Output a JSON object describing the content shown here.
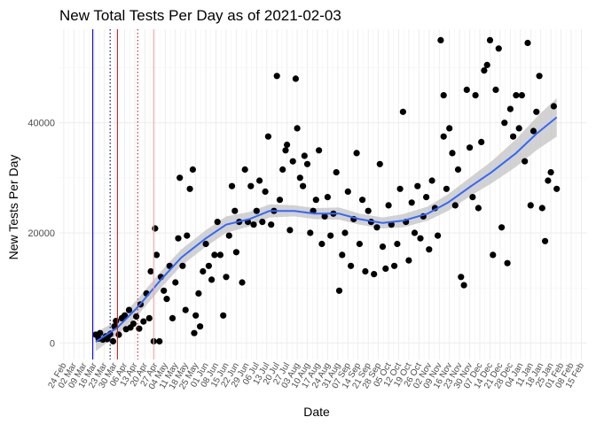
{
  "chart_data": {
    "type": "scatter",
    "title": "New Total Tests Per Day as of 2021-02-03",
    "xlabel": "Date",
    "ylabel": "New Tests Per Day",
    "x_range": [
      "2020-02-21",
      "2021-02-19"
    ],
    "ylim": [
      -3000,
      57000
    ],
    "y_ticks": [
      0,
      20000,
      40000
    ],
    "x_tick_labels": [
      "24 Feb",
      "02 Mar",
      "09 Mar",
      "16 Mar",
      "23 Mar",
      "30 Mar",
      "06 Apr",
      "13 Apr",
      "20 Apr",
      "27 Apr",
      "04 May",
      "11 May",
      "18 May",
      "25 May",
      "01 Jun",
      "08 Jun",
      "15 Jun",
      "22 Jun",
      "29 Jun",
      "06 Jul",
      "13 Jul",
      "20 Jul",
      "27 Jul",
      "03 Aug",
      "10 Aug",
      "17 Aug",
      "24 Aug",
      "31 Aug",
      "07 Sep",
      "14 Sep",
      "21 Sep",
      "28 Sep",
      "05 Oct",
      "12 Oct",
      "19 Oct",
      "26 Oct",
      "02 Nov",
      "09 Nov",
      "16 Nov",
      "23 Nov",
      "30 Nov",
      "07 Dec",
      "14 Dec",
      "21 Dec",
      "28 Dec",
      "04 Jan",
      "11 Jan",
      "18 Jan",
      "25 Jan",
      "01 Feb",
      "08 Feb",
      "15 Feb"
    ],
    "x_tick_dates": [
      "2020-02-24",
      "2020-03-02",
      "2020-03-09",
      "2020-03-16",
      "2020-03-23",
      "2020-03-30",
      "2020-04-06",
      "2020-04-13",
      "2020-04-20",
      "2020-04-27",
      "2020-05-04",
      "2020-05-11",
      "2020-05-18",
      "2020-05-25",
      "2020-06-01",
      "2020-06-08",
      "2020-06-15",
      "2020-06-22",
      "2020-06-29",
      "2020-07-06",
      "2020-07-13",
      "2020-07-20",
      "2020-07-27",
      "2020-08-03",
      "2020-08-10",
      "2020-08-17",
      "2020-08-24",
      "2020-08-31",
      "2020-09-07",
      "2020-09-14",
      "2020-09-21",
      "2020-09-28",
      "2020-10-05",
      "2020-10-12",
      "2020-10-19",
      "2020-10-26",
      "2020-11-02",
      "2020-11-09",
      "2020-11-16",
      "2020-11-23",
      "2020-11-30",
      "2020-12-07",
      "2020-12-14",
      "2020-12-21",
      "2020-12-28",
      "2021-01-04",
      "2021-01-11",
      "2021-01-18",
      "2021-01-25",
      "2021-02-01",
      "2021-02-08",
      "2021-02-15"
    ],
    "grid": true,
    "vlines": [
      {
        "date": "2020-03-15",
        "color": "#0000cd",
        "style": "solid"
      },
      {
        "date": "2020-03-27",
        "color": "#00008b",
        "style": "dotted"
      },
      {
        "date": "2020-04-01",
        "color": "#b22222",
        "style": "solid"
      },
      {
        "date": "2020-04-15",
        "color": "#b22222",
        "style": "dotted"
      },
      {
        "date": "2020-04-26",
        "color": "#f4a6a6",
        "style": "solid"
      }
    ],
    "points": [
      {
        "x": "2020-03-17",
        "y": 1500
      },
      {
        "x": "2020-03-19",
        "y": 800
      },
      {
        "x": "2020-03-20",
        "y": 1800
      },
      {
        "x": "2020-03-22",
        "y": 600
      },
      {
        "x": "2020-03-24",
        "y": 1200
      },
      {
        "x": "2020-03-25",
        "y": 700
      },
      {
        "x": "2020-03-27",
        "y": 1600
      },
      {
        "x": "2020-03-29",
        "y": 300
      },
      {
        "x": "2020-03-30",
        "y": 3000
      },
      {
        "x": "2020-03-31",
        "y": 4000
      },
      {
        "x": "2020-04-02",
        "y": 1500
      },
      {
        "x": "2020-04-04",
        "y": 4500
      },
      {
        "x": "2020-04-06",
        "y": 5000
      },
      {
        "x": "2020-04-07",
        "y": 2500
      },
      {
        "x": "2020-04-09",
        "y": 6000
      },
      {
        "x": "2020-04-10",
        "y": 2800
      },
      {
        "x": "2020-04-12",
        "y": 3500
      },
      {
        "x": "2020-04-14",
        "y": 4800
      },
      {
        "x": "2020-04-16",
        "y": 2600
      },
      {
        "x": "2020-04-17",
        "y": 7000
      },
      {
        "x": "2020-04-19",
        "y": 3900
      },
      {
        "x": "2020-04-21",
        "y": 9000
      },
      {
        "x": "2020-04-23",
        "y": 4500
      },
      {
        "x": "2020-04-24",
        "y": 13000
      },
      {
        "x": "2020-04-26",
        "y": 300
      },
      {
        "x": "2020-04-27",
        "y": 20800
      },
      {
        "x": "2020-04-28",
        "y": 16000
      },
      {
        "x": "2020-04-30",
        "y": 300
      },
      {
        "x": "2020-05-01",
        "y": 12000
      },
      {
        "x": "2020-05-03",
        "y": 9500
      },
      {
        "x": "2020-05-05",
        "y": 8000
      },
      {
        "x": "2020-05-07",
        "y": 14000
      },
      {
        "x": "2020-05-09",
        "y": 4500
      },
      {
        "x": "2020-05-11",
        "y": 11000
      },
      {
        "x": "2020-05-13",
        "y": 19000
      },
      {
        "x": "2020-05-14",
        "y": 30000
      },
      {
        "x": "2020-05-16",
        "y": 14000
      },
      {
        "x": "2020-05-18",
        "y": 6000
      },
      {
        "x": "2020-05-19",
        "y": 19500
      },
      {
        "x": "2020-05-21",
        "y": 28000
      },
      {
        "x": "2020-05-23",
        "y": 31500
      },
      {
        "x": "2020-05-24",
        "y": 1800
      },
      {
        "x": "2020-05-25",
        "y": 5000
      },
      {
        "x": "2020-05-27",
        "y": 9000
      },
      {
        "x": "2020-05-28",
        "y": 3000
      },
      {
        "x": "2020-05-30",
        "y": 13000
      },
      {
        "x": "2020-06-01",
        "y": 18000
      },
      {
        "x": "2020-06-03",
        "y": 14000
      },
      {
        "x": "2020-06-05",
        "y": 11500
      },
      {
        "x": "2020-06-07",
        "y": 16000
      },
      {
        "x": "2020-06-09",
        "y": 22000
      },
      {
        "x": "2020-06-11",
        "y": 16000
      },
      {
        "x": "2020-06-13",
        "y": 5000
      },
      {
        "x": "2020-06-15",
        "y": 12000
      },
      {
        "x": "2020-06-17",
        "y": 19500
      },
      {
        "x": "2020-06-19",
        "y": 28500
      },
      {
        "x": "2020-06-21",
        "y": 24000
      },
      {
        "x": "2020-06-22",
        "y": 16500
      },
      {
        "x": "2020-06-24",
        "y": 22000
      },
      {
        "x": "2020-06-26",
        "y": 11000
      },
      {
        "x": "2020-06-28",
        "y": 31500
      },
      {
        "x": "2020-06-30",
        "y": 22000
      },
      {
        "x": "2020-07-02",
        "y": 28500
      },
      {
        "x": "2020-07-04",
        "y": 21500
      },
      {
        "x": "2020-07-06",
        "y": 24000
      },
      {
        "x": "2020-07-08",
        "y": 29500
      },
      {
        "x": "2020-07-10",
        "y": 22000
      },
      {
        "x": "2020-07-12",
        "y": 27500
      },
      {
        "x": "2020-07-14",
        "y": 37500
      },
      {
        "x": "2020-07-16",
        "y": 21500
      },
      {
        "x": "2020-07-18",
        "y": 24000
      },
      {
        "x": "2020-07-20",
        "y": 48500
      },
      {
        "x": "2020-07-22",
        "y": 26000
      },
      {
        "x": "2020-07-24",
        "y": 31500
      },
      {
        "x": "2020-07-26",
        "y": 35000
      },
      {
        "x": "2020-07-27",
        "y": 36000
      },
      {
        "x": "2020-07-29",
        "y": 20500
      },
      {
        "x": "2020-07-31",
        "y": 33000
      },
      {
        "x": "2020-08-02",
        "y": 48000
      },
      {
        "x": "2020-08-03",
        "y": 39000
      },
      {
        "x": "2020-08-05",
        "y": 30000
      },
      {
        "x": "2020-08-07",
        "y": 28500
      },
      {
        "x": "2020-08-08",
        "y": 34000
      },
      {
        "x": "2020-08-10",
        "y": 32500
      },
      {
        "x": "2020-08-12",
        "y": 20000
      },
      {
        "x": "2020-08-14",
        "y": 24000
      },
      {
        "x": "2020-08-16",
        "y": 26000
      },
      {
        "x": "2020-08-18",
        "y": 35000
      },
      {
        "x": "2020-08-20",
        "y": 18000
      },
      {
        "x": "2020-08-22",
        "y": 23000
      },
      {
        "x": "2020-08-24",
        "y": 26500
      },
      {
        "x": "2020-08-26",
        "y": 19500
      },
      {
        "x": "2020-08-28",
        "y": 23500
      },
      {
        "x": "2020-08-30",
        "y": 31000
      },
      {
        "x": "2020-09-01",
        "y": 9500
      },
      {
        "x": "2020-09-03",
        "y": 16000
      },
      {
        "x": "2020-09-05",
        "y": 20000
      },
      {
        "x": "2020-09-07",
        "y": 27500
      },
      {
        "x": "2020-09-09",
        "y": 14000
      },
      {
        "x": "2020-09-11",
        "y": 22500
      },
      {
        "x": "2020-09-13",
        "y": 34500
      },
      {
        "x": "2020-09-15",
        "y": 18000
      },
      {
        "x": "2020-09-17",
        "y": 26000
      },
      {
        "x": "2020-09-19",
        "y": 13000
      },
      {
        "x": "2020-09-21",
        "y": 24000
      },
      {
        "x": "2020-09-23",
        "y": 22000
      },
      {
        "x": "2020-09-25",
        "y": 12500
      },
      {
        "x": "2020-09-27",
        "y": 21000
      },
      {
        "x": "2020-09-29",
        "y": 32500
      },
      {
        "x": "2020-10-01",
        "y": 17500
      },
      {
        "x": "2020-10-03",
        "y": 13500
      },
      {
        "x": "2020-10-05",
        "y": 25000
      },
      {
        "x": "2020-10-07",
        "y": 21500
      },
      {
        "x": "2020-10-09",
        "y": 14000
      },
      {
        "x": "2020-10-11",
        "y": 18000
      },
      {
        "x": "2020-10-13",
        "y": 28000
      },
      {
        "x": "2020-10-15",
        "y": 42000
      },
      {
        "x": "2020-10-17",
        "y": 22000
      },
      {
        "x": "2020-10-19",
        "y": 15000
      },
      {
        "x": "2020-10-21",
        "y": 25500
      },
      {
        "x": "2020-10-23",
        "y": 20000
      },
      {
        "x": "2020-10-25",
        "y": 28500
      },
      {
        "x": "2020-10-27",
        "y": 19000
      },
      {
        "x": "2020-10-29",
        "y": 23000
      },
      {
        "x": "2020-10-31",
        "y": 26500
      },
      {
        "x": "2020-11-02",
        "y": 17000
      },
      {
        "x": "2020-11-04",
        "y": 29500
      },
      {
        "x": "2020-11-06",
        "y": 24500
      },
      {
        "x": "2020-11-08",
        "y": 19500
      },
      {
        "x": "2020-11-10",
        "y": 55000
      },
      {
        "x": "2020-11-12",
        "y": 37500
      },
      {
        "x": "2020-11-12",
        "y": 45000
      },
      {
        "x": "2020-11-14",
        "y": 28000
      },
      {
        "x": "2020-11-16",
        "y": 39000
      },
      {
        "x": "2020-11-18",
        "y": 34500
      },
      {
        "x": "2020-11-20",
        "y": 25000
      },
      {
        "x": "2020-11-22",
        "y": 31500
      },
      {
        "x": "2020-11-24",
        "y": 12000
      },
      {
        "x": "2020-11-26",
        "y": 10500
      },
      {
        "x": "2020-11-28",
        "y": 46000
      },
      {
        "x": "2020-11-30",
        "y": 35500
      },
      {
        "x": "2020-12-02",
        "y": 26500
      },
      {
        "x": "2020-12-04",
        "y": 45000
      },
      {
        "x": "2020-12-06",
        "y": 24500
      },
      {
        "x": "2020-12-08",
        "y": 36500
      },
      {
        "x": "2020-12-10",
        "y": 49500
      },
      {
        "x": "2020-12-12",
        "y": 50500
      },
      {
        "x": "2020-12-14",
        "y": 55000
      },
      {
        "x": "2020-12-16",
        "y": 16000
      },
      {
        "x": "2020-12-18",
        "y": 46000
      },
      {
        "x": "2020-12-20",
        "y": 53500
      },
      {
        "x": "2020-12-22",
        "y": 21000
      },
      {
        "x": "2020-12-24",
        "y": 40000
      },
      {
        "x": "2020-12-26",
        "y": 14500
      },
      {
        "x": "2020-12-28",
        "y": 42500
      },
      {
        "x": "2020-12-30",
        "y": 37500
      },
      {
        "x": "2021-01-01",
        "y": 45000
      },
      {
        "x": "2021-01-03",
        "y": 39000
      },
      {
        "x": "2021-01-05",
        "y": 45000
      },
      {
        "x": "2021-01-07",
        "y": 33000
      },
      {
        "x": "2021-01-09",
        "y": 54500
      },
      {
        "x": "2021-01-11",
        "y": 25000
      },
      {
        "x": "2021-01-13",
        "y": 38500
      },
      {
        "x": "2021-01-15",
        "y": 42000
      },
      {
        "x": "2021-01-17",
        "y": 48500
      },
      {
        "x": "2021-01-19",
        "y": 24500
      },
      {
        "x": "2021-01-21",
        "y": 18500
      },
      {
        "x": "2021-01-23",
        "y": 29500
      },
      {
        "x": "2021-01-25",
        "y": 31000
      },
      {
        "x": "2021-01-27",
        "y": 43000
      },
      {
        "x": "2021-01-29",
        "y": 28000
      }
    ],
    "smooth": {
      "color": "#3366ff",
      "ci_color": "#bfbfbf",
      "x": [
        "2020-03-17",
        "2020-04-01",
        "2020-04-15",
        "2020-05-01",
        "2020-05-15",
        "2020-06-01",
        "2020-06-15",
        "2020-07-01",
        "2020-07-15",
        "2020-08-01",
        "2020-08-15",
        "2020-09-01",
        "2020-09-15",
        "2020-10-01",
        "2020-10-15",
        "2020-11-01",
        "2020-11-15",
        "2020-12-01",
        "2020-12-15",
        "2021-01-01",
        "2021-01-15",
        "2021-01-29"
      ],
      "y": [
        200,
        2800,
        6500,
        11500,
        15500,
        19000,
        21500,
        22500,
        24000,
        24000,
        23500,
        23500,
        22500,
        21800,
        22200,
        23500,
        25500,
        28500,
        31000,
        34500,
        38000,
        41000
      ],
      "lower": [
        -1500,
        1500,
        5000,
        10000,
        14000,
        17500,
        20000,
        21200,
        22800,
        23000,
        22500,
        22400,
        21500,
        20800,
        21000,
        22200,
        24000,
        26800,
        29000,
        32000,
        35000,
        37500
      ],
      "upper": [
        1900,
        4100,
        8000,
        13000,
        17000,
        20500,
        23000,
        23800,
        25200,
        25000,
        24500,
        24600,
        23500,
        22800,
        23400,
        24800,
        27000,
        30200,
        33000,
        37000,
        41000,
        44500
      ]
    }
  }
}
